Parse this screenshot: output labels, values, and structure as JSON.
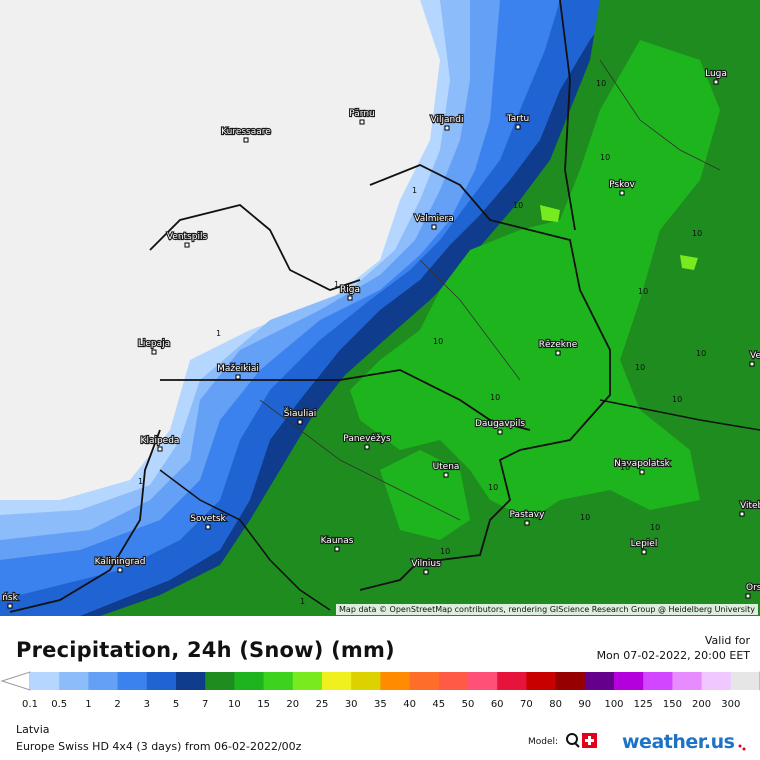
{
  "map": {
    "attribution": "Map data © OpenStreetMap contributors, rendering GIScience Research Group @ Heidelberg University",
    "cities": [
      {
        "name": "Kuressaare"
      },
      {
        "name": "Pärnu"
      },
      {
        "name": "Viljandi"
      },
      {
        "name": "Tartu"
      },
      {
        "name": "Luga"
      },
      {
        "name": "Pskov"
      },
      {
        "name": "Valmiera"
      },
      {
        "name": "Ventspils"
      },
      {
        "name": "Riga"
      },
      {
        "name": "Liepaja"
      },
      {
        "name": "Rēzekne"
      },
      {
        "name": "Mažeikiai"
      },
      {
        "name": "Šiauliai"
      },
      {
        "name": "Daugavpils"
      },
      {
        "name": "Panevėžys"
      },
      {
        "name": "Klaipeda"
      },
      {
        "name": "Utena"
      },
      {
        "name": "Navapolatsk"
      },
      {
        "name": "Pastavy"
      },
      {
        "name": "Sovetsk"
      },
      {
        "name": "Kaunas"
      },
      {
        "name": "Lepiel"
      },
      {
        "name": "Kaliningrad"
      },
      {
        "name": "Vilnius"
      },
      {
        "name": "Vitebsk"
      },
      {
        "name": "Velik"
      },
      {
        "name": "Orsh"
      },
      {
        "name": "ńsk"
      }
    ],
    "contour_labels": [
      "10",
      "1",
      "10",
      "10",
      "10",
      "10",
      "10",
      "1",
      "1",
      "10",
      "10",
      "10",
      "10",
      "10",
      "10",
      "1",
      "1",
      "10",
      "10",
      "10"
    ]
  },
  "header": {
    "title": "Precipitation, 24h (Snow) (mm)",
    "valid_label": "Valid for",
    "valid_time": "Mon 07-02-2022, 20:00 EET"
  },
  "legend": {
    "ticks": [
      "0.1",
      "0.5",
      "1",
      "2",
      "3",
      "5",
      "7",
      "10",
      "15",
      "20",
      "25",
      "30",
      "35",
      "40",
      "45",
      "50",
      "60",
      "70",
      "80",
      "90",
      "100",
      "125",
      "150",
      "200",
      "300"
    ],
    "colors": [
      "#b4d6ff",
      "#8cbcfa",
      "#64a0f5",
      "#3c82ee",
      "#1f64d2",
      "#0f3c8c",
      "#1e8c1e",
      "#1eb41e",
      "#3cd21e",
      "#78eb1e",
      "#f0f01e",
      "#dcd200",
      "#ff8c00",
      "#ff6e28",
      "#ff5a46",
      "#ff5078",
      "#e6143c",
      "#c80000",
      "#960000",
      "#64008c",
      "#b400dc",
      "#d246ff",
      "#e68cff",
      "#f0c8ff",
      "#e6e6e6"
    ]
  },
  "footer": {
    "region": "Latvia",
    "model_line": "Europe Swiss HD 4x4 (3 days) from  06-02-2022/00z",
    "model_label": "Model:",
    "brand": "weather.us"
  }
}
